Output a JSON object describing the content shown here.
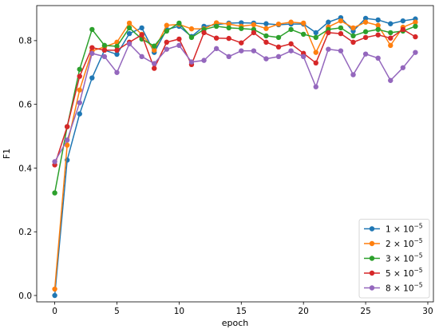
{
  "chart_data": {
    "type": "line",
    "xlabel": "epoch",
    "ylabel": "F1",
    "xlim": [
      -1.45,
      30.45
    ],
    "ylim": [
      -0.02,
      0.91
    ],
    "xticks": [
      0,
      5,
      10,
      15,
      20,
      25,
      30
    ],
    "yticks": [
      0.0,
      0.2,
      0.4,
      0.6,
      0.8
    ],
    "ytick_labels": [
      "0.0",
      "0.2",
      "0.4",
      "0.6",
      "0.8"
    ],
    "grid": false,
    "legend_position": "lower-right",
    "x": [
      0,
      1,
      2,
      3,
      4,
      5,
      6,
      7,
      8,
      9,
      10,
      11,
      12,
      13,
      14,
      15,
      16,
      17,
      18,
      19,
      20,
      21,
      22,
      23,
      24,
      25,
      26,
      27,
      28,
      29
    ],
    "series": [
      {
        "name_base": "1",
        "name_exp": "−5",
        "color": "#1f77b4",
        "values": [
          0.0,
          0.425,
          0.57,
          0.683,
          0.77,
          0.757,
          0.822,
          0.84,
          0.763,
          0.835,
          0.845,
          0.813,
          0.845,
          0.85,
          0.855,
          0.856,
          0.855,
          0.853,
          0.85,
          0.852,
          0.852,
          0.825,
          0.858,
          0.872,
          0.83,
          0.87,
          0.865,
          0.853,
          0.862,
          0.868
        ]
      },
      {
        "name_base": "2",
        "name_exp": "−5",
        "color": "#ff7f0e",
        "values": [
          0.02,
          0.472,
          0.645,
          0.768,
          0.78,
          0.795,
          0.855,
          0.82,
          0.77,
          0.848,
          0.851,
          0.837,
          0.837,
          0.856,
          0.852,
          0.845,
          0.85,
          0.838,
          0.852,
          0.858,
          0.855,
          0.763,
          0.843,
          0.862,
          0.84,
          0.858,
          0.848,
          0.785,
          0.842,
          0.858
        ]
      },
      {
        "name_base": "3",
        "name_exp": "−5",
        "color": "#2ca02c",
        "values": [
          0.322,
          0.53,
          0.71,
          0.835,
          0.785,
          0.782,
          0.84,
          0.805,
          0.783,
          0.83,
          0.855,
          0.81,
          0.835,
          0.845,
          0.84,
          0.838,
          0.835,
          0.815,
          0.81,
          0.835,
          0.82,
          0.81,
          0.835,
          0.84,
          0.815,
          0.828,
          0.835,
          0.825,
          0.83,
          0.845
        ]
      },
      {
        "name_base": "5",
        "name_exp": "−5",
        "color": "#d62728",
        "values": [
          0.41,
          0.53,
          0.688,
          0.778,
          0.77,
          0.77,
          0.795,
          0.818,
          0.713,
          0.795,
          0.805,
          0.725,
          0.825,
          0.808,
          0.807,
          0.793,
          0.825,
          0.795,
          0.78,
          0.79,
          0.76,
          0.73,
          0.825,
          0.822,
          0.795,
          0.81,
          0.818,
          0.808,
          0.835,
          0.812
        ]
      },
      {
        "name_base": "8",
        "name_exp": "−5",
        "color": "#9467bd",
        "values": [
          0.42,
          0.488,
          0.605,
          0.76,
          0.75,
          0.7,
          0.79,
          0.75,
          0.728,
          0.773,
          0.785,
          0.733,
          0.738,
          0.775,
          0.75,
          0.768,
          0.768,
          0.743,
          0.75,
          0.768,
          0.75,
          0.655,
          0.773,
          0.768,
          0.693,
          0.758,
          0.745,
          0.675,
          0.715,
          0.763
        ]
      }
    ]
  }
}
